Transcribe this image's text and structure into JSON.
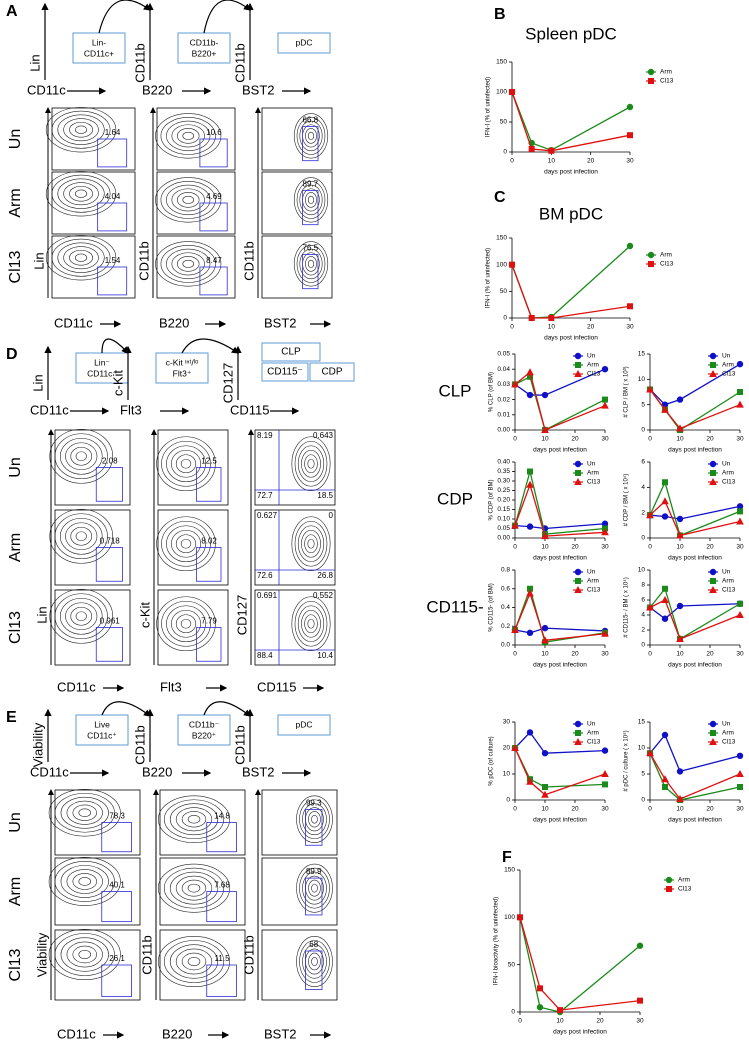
{
  "panels": [
    {
      "label": "A",
      "gating": [
        {
          "y": "Lin",
          "x": "CD11c",
          "gate": [
            "Lin-",
            "CD11c+"
          ]
        },
        {
          "y": "CD11b",
          "x": "B220",
          "gate": [
            "CD11b-",
            "B220+"
          ]
        },
        {
          "y": "CD11b",
          "x": "BST2",
          "gate": [
            "pDC"
          ]
        }
      ],
      "axes": [
        {
          "y": "Lin",
          "x": "CD11c"
        },
        {
          "y": "CD11b",
          "x": "B220"
        },
        {
          "y": "CD11b",
          "x": "BST2"
        }
      ],
      "rows": [
        {
          "name": "Un",
          "gates": [
            1.64,
            10.6,
            66.8
          ]
        },
        {
          "name": "Arm",
          "gates": [
            4.04,
            4.69,
            89.7
          ]
        },
        {
          "name": "Cl13",
          "gates": [
            1.54,
            8.47,
            76.5
          ]
        }
      ]
    },
    {
      "label": "D",
      "gating": [
        {
          "y": "Lin",
          "x": "CD11c",
          "gate": [
            "Lin⁻",
            "CD11c⁻"
          ]
        },
        {
          "y": "c-Kit",
          "x": "Flt3",
          "gate": [
            "c-Kit ᶦⁿᵗ/ˡᵒ",
            "Flt3⁺"
          ]
        },
        {
          "y": "CD127",
          "x": "CD115",
          "gate": [
            "CLP",
            "CD115⁻",
            "CDP"
          ]
        }
      ],
      "axes": [
        {
          "y": "Lin",
          "x": "CD11c"
        },
        {
          "y": "c-Kit",
          "x": "Flt3"
        },
        {
          "y": "CD127",
          "x": "CD115"
        }
      ],
      "rows": [
        {
          "name": "Un",
          "gates": [
            2.08,
            12.5,
            [
              8.19,
              0.643,
              72.7,
              18.5
            ]
          ]
        },
        {
          "name": "Arm",
          "gates": [
            0.718,
            8.02,
            [
              0.627,
              0,
              72.6,
              26.8
            ]
          ]
        },
        {
          "name": "Cl13",
          "gates": [
            0.961,
            7.79,
            [
              0.691,
              0.552,
              88.4,
              10.4
            ]
          ]
        }
      ]
    },
    {
      "label": "E",
      "gating": [
        {
          "y": "Viability",
          "x": "CD11c",
          "gate": [
            "Live",
            "CD11c⁺"
          ]
        },
        {
          "y": "CD11b",
          "x": "B220",
          "gate": [
            "CD11b⁻",
            "B220⁺"
          ]
        },
        {
          "y": "CD11b",
          "x": "BST2",
          "gate": [
            "pDC"
          ]
        }
      ],
      "axes": [
        {
          "y": "Viability",
          "x": "CD11c"
        },
        {
          "y": "CD11b",
          "x": "B220"
        },
        {
          "y": "CD11b",
          "x": "BST2"
        }
      ],
      "rows": [
        {
          "name": "Un",
          "gates": [
            78.3,
            14.8,
            99.3
          ]
        },
        {
          "name": "Arm",
          "gates": [
            40.1,
            7.68,
            89.9
          ]
        },
        {
          "name": "Cl13",
          "gates": [
            26.1,
            11.5,
            68
          ]
        }
      ]
    }
  ],
  "row_labels": [
    "CLP",
    "CDP",
    "CD115-"
  ],
  "chart_data": [
    {
      "type": "line",
      "panel": "B",
      "title": "Spleen pDC",
      "ylabel": "IFN-I (% of uninfected)",
      "xlabel": "days post infection",
      "x": [
        0,
        5,
        10,
        30
      ],
      "xlim": [
        0,
        30
      ],
      "xticks": [
        0,
        10,
        20,
        30
      ],
      "ylim": [
        0,
        150
      ],
      "yticks": [
        0,
        50,
        100,
        150
      ],
      "series": [
        {
          "name": "Arm",
          "color": "#1a8a1a",
          "marker": "circle",
          "values": [
            100,
            15,
            3,
            75
          ]
        },
        {
          "name": "Cl13",
          "color": "#e01010",
          "marker": "square",
          "values": [
            100,
            5,
            2,
            28
          ]
        }
      ]
    },
    {
      "type": "line",
      "panel": "C",
      "title": "BM pDC",
      "ylabel": "IFN-I (% of uninfected)",
      "xlabel": "days post infection",
      "x": [
        0,
        5,
        10,
        30
      ],
      "xlim": [
        0,
        30
      ],
      "xticks": [
        0,
        10,
        20,
        30
      ],
      "ylim": [
        0,
        150
      ],
      "yticks": [
        0,
        50,
        100,
        150
      ],
      "series": [
        {
          "name": "Arm",
          "color": "#1a8a1a",
          "marker": "circle",
          "values": [
            100,
            0,
            2,
            135
          ]
        },
        {
          "name": "Cl13",
          "color": "#e01010",
          "marker": "square",
          "values": [
            100,
            0,
            0,
            22
          ]
        }
      ]
    },
    {
      "type": "line",
      "ylabel": "% CLP (of BM)",
      "xlabel": "days post infection",
      "x": [
        0,
        5,
        10,
        30
      ],
      "xlim": [
        0,
        30
      ],
      "xticks": [
        0,
        10,
        20,
        30
      ],
      "ylim": [
        0,
        0.05
      ],
      "yticks": [
        {
          "value": 0,
          "label": "0.00"
        },
        0.01,
        0.02,
        0.03,
        0.04,
        0.05
      ],
      "series": [
        {
          "name": "Un",
          "color": "#1010c8",
          "marker": "circle",
          "values": [
            0.03,
            0.023,
            0.023,
            0.04
          ]
        },
        {
          "name": "Arm",
          "color": "#1a8a1a",
          "marker": "square",
          "values": [
            0.03,
            0.035,
            0.0,
            0.02
          ]
        },
        {
          "name": "Cl13",
          "color": "#e01010",
          "marker": "triangle",
          "values": [
            0.03,
            0.038,
            0.0,
            0.016
          ]
        }
      ]
    },
    {
      "type": "line",
      "ylabel": "# CLP / BM ( x 10³)",
      "xlabel": "days post infection",
      "x": [
        0,
        5,
        10,
        30
      ],
      "xlim": [
        0,
        30
      ],
      "xticks": [
        0,
        10,
        20,
        30
      ],
      "ylim": [
        0,
        15
      ],
      "yticks": [
        0,
        5,
        10,
        15
      ],
      "series": [
        {
          "name": "Un",
          "color": "#1010c8",
          "marker": "circle",
          "values": [
            8,
            5,
            6,
            13
          ]
        },
        {
          "name": "Arm",
          "color": "#1a8a1a",
          "marker": "square",
          "values": [
            8,
            4,
            0,
            7.5
          ]
        },
        {
          "name": "Cl13",
          "color": "#e01010",
          "marker": "triangle",
          "values": [
            8,
            4,
            0.3,
            5
          ]
        }
      ]
    },
    {
      "type": "line",
      "ylabel": "% CDP (of BM)",
      "xlabel": "days post infection",
      "x": [
        0,
        5,
        10,
        30
      ],
      "xlim": [
        0,
        30
      ],
      "xticks": [
        0,
        10,
        20,
        30
      ],
      "ylim": [
        0,
        0.4
      ],
      "yticks": [
        {
          "value": 0,
          "label": "0.00"
        },
        0.05,
        {
          "value": 0.1,
          "label": "0.10"
        },
        0.15,
        {
          "value": 0.2,
          "label": "0.20"
        },
        0.25,
        {
          "value": 0.3,
          "label": "0.30"
        },
        0.35,
        {
          "value": 0.4,
          "label": "0.40"
        }
      ],
      "series": [
        {
          "name": "Un",
          "color": "#1010c8",
          "marker": "circle",
          "values": [
            0.065,
            0.06,
            0.05,
            0.075
          ]
        },
        {
          "name": "Arm",
          "color": "#1a8a1a",
          "marker": "square",
          "values": [
            0.065,
            0.35,
            0.02,
            0.05
          ]
        },
        {
          "name": "Cl13",
          "color": "#e01010",
          "marker": "triangle",
          "values": [
            0.065,
            0.28,
            0.01,
            0.03
          ]
        }
      ]
    },
    {
      "type": "line",
      "ylabel": "# CDP / BM ( x 10⁴)",
      "xlabel": "days post infection",
      "x": [
        0,
        5,
        10,
        30
      ],
      "xlim": [
        0,
        30
      ],
      "xticks": [
        0,
        10,
        20,
        30
      ],
      "ylim": [
        0,
        6
      ],
      "yticks": [
        0,
        2,
        4,
        6
      ],
      "series": [
        {
          "name": "Un",
          "color": "#1010c8",
          "marker": "circle",
          "values": [
            1.8,
            1.7,
            1.5,
            2.5
          ]
        },
        {
          "name": "Arm",
          "color": "#1a8a1a",
          "marker": "square",
          "values": [
            1.8,
            4.4,
            0.2,
            2.1
          ]
        },
        {
          "name": "Cl13",
          "color": "#e01010",
          "marker": "triangle",
          "values": [
            1.8,
            2.9,
            0.2,
            1.3
          ]
        }
      ]
    },
    {
      "type": "line",
      "ylabel": "% CD115- (of BM)",
      "xlabel": "days post infection",
      "x": [
        0,
        5,
        10,
        30
      ],
      "xlim": [
        0,
        30
      ],
      "xticks": [
        0,
        10,
        20,
        30
      ],
      "ylim": [
        0,
        0.8
      ],
      "yticks": [
        {
          "value": 0,
          "label": "0.0"
        },
        0.2,
        0.4,
        0.6,
        0.8
      ],
      "series": [
        {
          "name": "Un",
          "color": "#1010c8",
          "marker": "circle",
          "values": [
            0.16,
            0.13,
            0.18,
            0.15
          ]
        },
        {
          "name": "Arm",
          "color": "#1a8a1a",
          "marker": "square",
          "values": [
            0.16,
            0.6,
            0.03,
            0.13
          ]
        },
        {
          "name": "Cl13",
          "color": "#e01010",
          "marker": "triangle",
          "values": [
            0.16,
            0.55,
            0.05,
            0.12
          ]
        }
      ]
    },
    {
      "type": "line",
      "ylabel": "# CD115- / BM ( x 10⁴)",
      "xlabel": "days post infection",
      "x": [
        0,
        5,
        10,
        30
      ],
      "xlim": [
        0,
        30
      ],
      "xticks": [
        0,
        10,
        20,
        30
      ],
      "ylim": [
        0,
        10
      ],
      "yticks": [
        0,
        2,
        4,
        6,
        8,
        10
      ],
      "series": [
        {
          "name": "Un",
          "color": "#1010c8",
          "marker": "circle",
          "values": [
            5,
            3.5,
            5.2,
            5.5
          ]
        },
        {
          "name": "Arm",
          "color": "#1a8a1a",
          "marker": "square",
          "values": [
            5,
            7.5,
            0.8,
            5.5
          ]
        },
        {
          "name": "Cl13",
          "color": "#e01010",
          "marker": "triangle",
          "values": [
            5,
            6,
            0.8,
            4
          ]
        }
      ]
    },
    {
      "type": "line",
      "ylabel": "% pDC (of culture)",
      "xlabel": "days post infection",
      "x": [
        0,
        5,
        10,
        30
      ],
      "xlim": [
        0,
        30
      ],
      "xticks": [
        0,
        10,
        20,
        30
      ],
      "ylim": [
        0,
        30
      ],
      "yticks": [
        0,
        10,
        20,
        30
      ],
      "series": [
        {
          "name": "Un",
          "color": "#1010c8",
          "marker": "circle",
          "values": [
            20,
            26,
            18,
            19
          ]
        },
        {
          "name": "Arm",
          "color": "#1a8a1a",
          "marker": "square",
          "values": [
            20,
            8,
            5,
            6
          ]
        },
        {
          "name": "Cl13",
          "color": "#e01010",
          "marker": "triangle",
          "values": [
            20,
            7,
            2,
            10
          ]
        }
      ]
    },
    {
      "type": "line",
      "ylabel": "# pDC / culture ( x 10⁵)",
      "xlabel": "days post infection",
      "x": [
        0,
        5,
        10,
        30
      ],
      "xlim": [
        0,
        30
      ],
      "xticks": [
        0,
        10,
        20,
        30
      ],
      "ylim": [
        0,
        15
      ],
      "yticks": [
        0,
        5,
        10,
        15
      ],
      "series": [
        {
          "name": "Un",
          "color": "#1010c8",
          "marker": "circle",
          "values": [
            9,
            12.5,
            5.5,
            8.5
          ]
        },
        {
          "name": "Arm",
          "color": "#1a8a1a",
          "marker": "square",
          "values": [
            9,
            2.5,
            0,
            2.5
          ]
        },
        {
          "name": "Cl13",
          "color": "#e01010",
          "marker": "triangle",
          "values": [
            9,
            4,
            0.2,
            5
          ]
        }
      ]
    },
    {
      "type": "line",
      "panel": "F",
      "ylabel": "IFN-I bioactivity (% of uninfected)",
      "xlabel": "days post infection",
      "x": [
        0,
        5,
        10,
        30
      ],
      "xlim": [
        0,
        30
      ],
      "xticks": [
        0,
        10,
        20,
        30
      ],
      "ylim": [
        0,
        150
      ],
      "yticks": [
        0,
        50,
        100,
        150
      ],
      "series": [
        {
          "name": "Arm",
          "color": "#1a8a1a",
          "marker": "circle",
          "values": [
            100,
            5,
            0,
            70
          ]
        },
        {
          "name": "Cl13",
          "color": "#e01010",
          "marker": "square",
          "values": [
            100,
            25,
            2,
            12
          ]
        }
      ]
    }
  ]
}
